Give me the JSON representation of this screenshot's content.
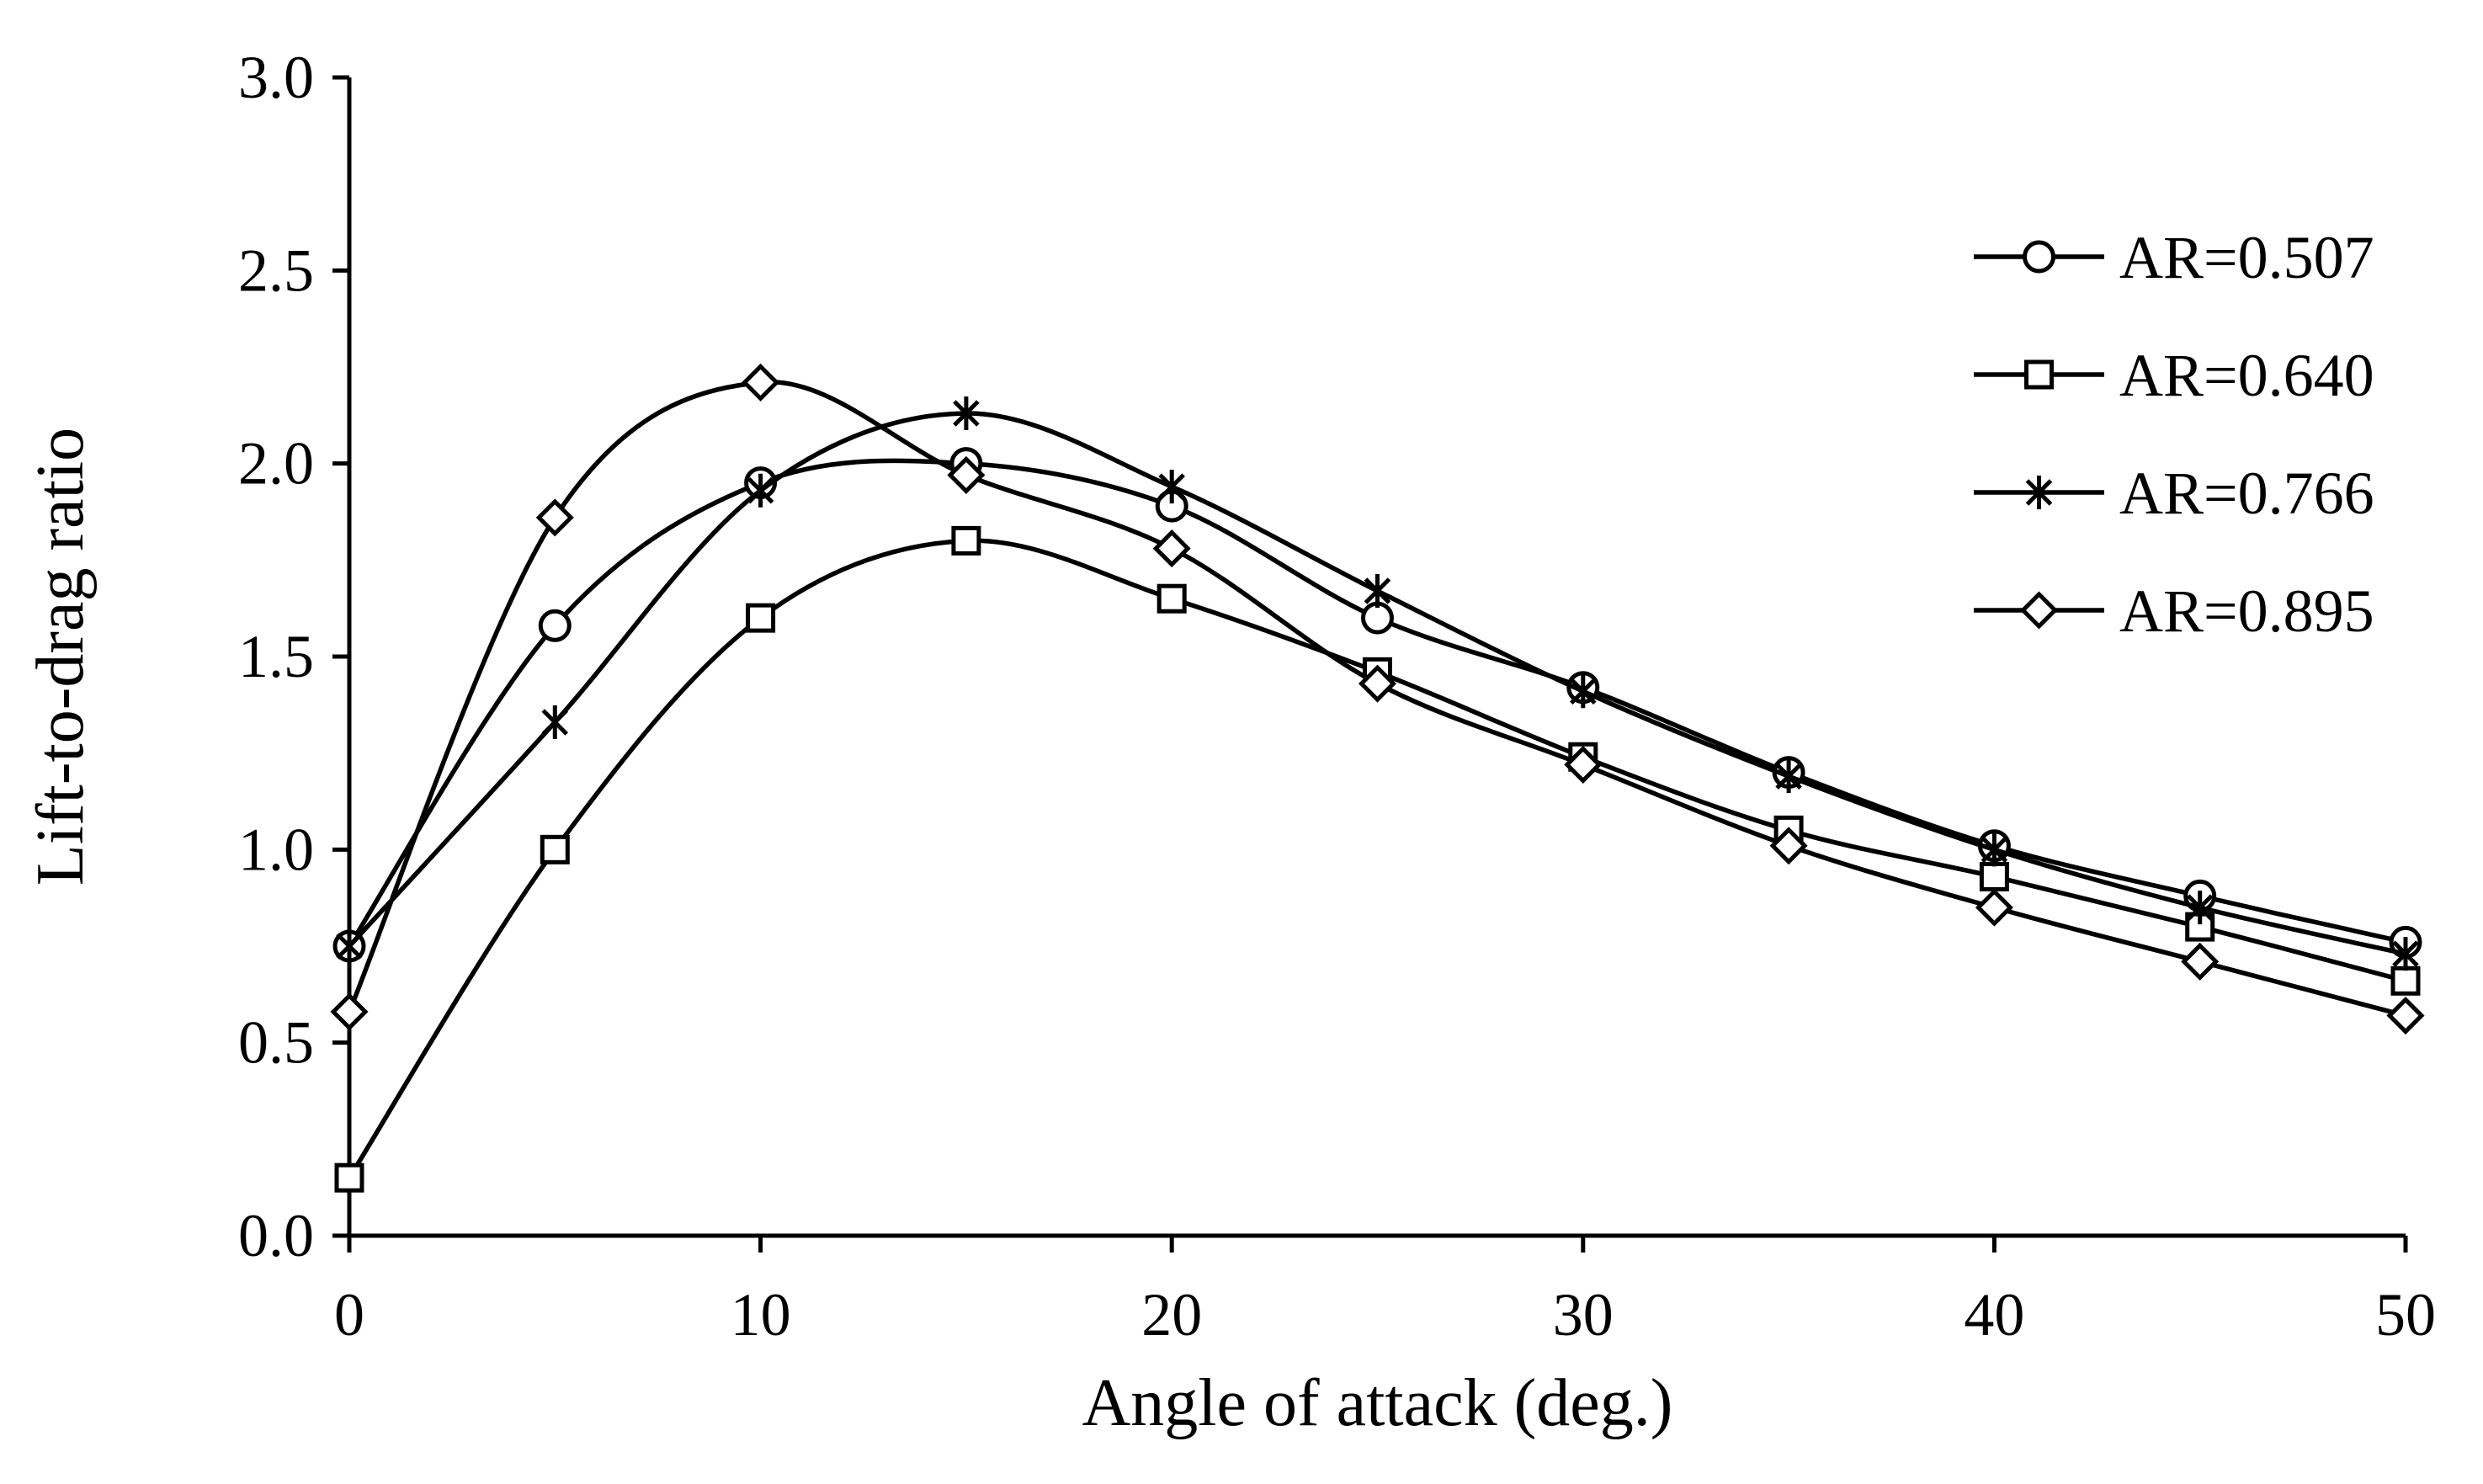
{
  "chart_data": {
    "type": "line",
    "title": "",
    "xlabel": "Angle of attack (deg.)",
    "ylabel": "Lift-to-drag ratio",
    "xlim": [
      0,
      50
    ],
    "ylim": [
      0.0,
      3.0
    ],
    "x_ticks": [
      "0",
      "10",
      "20",
      "30",
      "40",
      "50"
    ],
    "y_ticks": [
      "0.0",
      "0.5",
      "1.0",
      "1.5",
      "2.0",
      "2.5",
      "3.0"
    ],
    "grid": false,
    "legend_position": "right",
    "x": [
      0,
      5,
      10,
      15,
      20,
      25,
      30,
      35,
      40,
      45,
      50
    ],
    "series": [
      {
        "name": "AR=0.507",
        "marker": "circle",
        "values": [
          0.75,
          1.58,
          1.95,
          2.0,
          1.89,
          1.6,
          1.42,
          1.2,
          1.01,
          0.88,
          0.76
        ]
      },
      {
        "name": "AR=0.640",
        "marker": "square",
        "values": [
          0.15,
          1.0,
          1.6,
          1.8,
          1.65,
          1.46,
          1.24,
          1.05,
          0.93,
          0.8,
          0.66
        ]
      },
      {
        "name": "AR=0.766",
        "marker": "asterisk",
        "values": [
          0.75,
          1.33,
          1.93,
          2.13,
          1.94,
          1.67,
          1.41,
          1.19,
          1.0,
          0.85,
          0.73
        ]
      },
      {
        "name": "AR=0.895",
        "marker": "diamond",
        "values": [
          0.58,
          1.86,
          2.21,
          1.97,
          1.78,
          1.43,
          1.22,
          1.01,
          0.85,
          0.71,
          0.57
        ]
      }
    ]
  }
}
